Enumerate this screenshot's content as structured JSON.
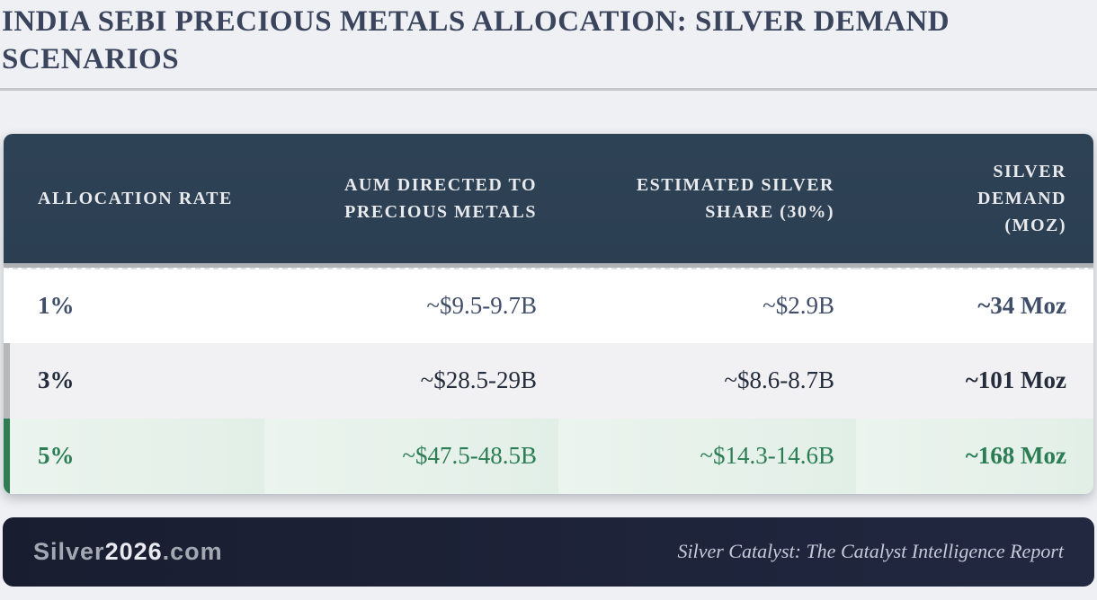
{
  "page": {
    "title": "INDIA SEBI PRECIOUS METALS ALLOCATION: SILVER DEMAND SCENARIOS"
  },
  "table": {
    "columns": [
      "ALLOCATION RATE",
      "AUM DIRECTED TO PRECIOUS METALS",
      "ESTIMATED SILVER SHARE (30%)",
      "SILVER DEMAND (MOZ)"
    ],
    "rows": [
      {
        "rate": "1%",
        "aum": "~$9.5-9.7B",
        "silver_share": "~$2.9B",
        "demand": "~34 Moz",
        "accent_color": "#ffffff"
      },
      {
        "rate": "3%",
        "aum": "~$28.5-29B",
        "silver_share": "~$8.6-8.7B",
        "demand": "~101 Moz",
        "accent_color": "#b6b8ba"
      },
      {
        "rate": "5%",
        "aum": "~$47.5-48.5B",
        "silver_share": "~$14.3-14.6B",
        "demand": "~168 Moz",
        "accent_color": "#2e7d52",
        "highlighted": true
      }
    ]
  },
  "footer": {
    "site_prefix": "Silver",
    "site_year": "2026",
    "site_suffix": ".com",
    "tagline": "Silver Catalyst: The Catalyst Intelligence Report"
  },
  "colors": {
    "page_background": "#eef0f3",
    "title_text": "#3a445c",
    "header_background": "#2d4154",
    "header_text": "#e8e9ec",
    "header_bottom_band": "#aeb1b3",
    "row_default_text": "#414e6a",
    "row_dark_text": "#252d3d",
    "highlight_row_background": "#e7f2ea",
    "highlight_row_text": "#2b7d54",
    "highlight_accent": "#2e7d52",
    "silver_accent": "#b6b8ba",
    "footer_background": "#1c2136",
    "footer_site_text": "#a4a8b3",
    "footer_tagline_text": "#c6cada"
  },
  "chart_data": {
    "type": "table",
    "title": "INDIA SEBI PRECIOUS METALS ALLOCATION: SILVER DEMAND SCENARIOS",
    "columns": [
      "ALLOCATION RATE",
      "AUM DIRECTED TO PRECIOUS METALS",
      "ESTIMATED SILVER SHARE (30%)",
      "SILVER DEMAND (MOZ)"
    ],
    "rows": [
      [
        "1%",
        "~$9.5-9.7B",
        "~$2.9B",
        "~34 Moz"
      ],
      [
        "3%",
        "~$28.5-29B",
        "~$8.6-8.7B",
        "~101 Moz"
      ],
      [
        "5%",
        "~$47.5-48.5B",
        "~$14.3-14.6B",
        "~168 Moz"
      ]
    ],
    "numeric": {
      "allocation_rate_pct": [
        1,
        3,
        5
      ],
      "aum_usd_billion_range": [
        [
          9.5,
          9.7
        ],
        [
          28.5,
          29
        ],
        [
          47.5,
          48.5
        ]
      ],
      "silver_share_usd_billion_range": [
        [
          2.9,
          2.9
        ],
        [
          8.6,
          8.7
        ],
        [
          14.3,
          14.6
        ]
      ],
      "silver_demand_moz": [
        34,
        101,
        168
      ]
    },
    "notes": "Row for 5% allocation is highlighted green; rows have left accent bars (white, silver, green)."
  }
}
